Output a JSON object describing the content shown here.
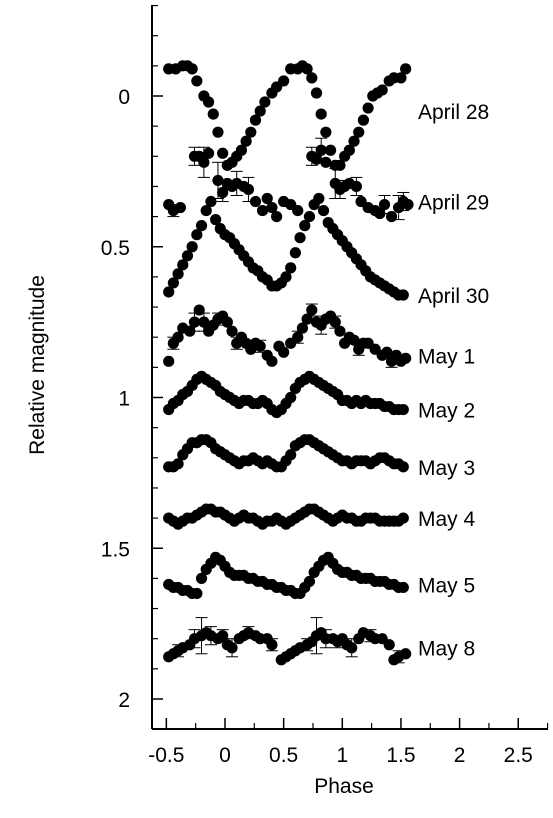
{
  "chart_data": {
    "type": "scatter",
    "title": "",
    "xlabel": "Phase",
    "ylabel": "Relative magnitude",
    "xlim": [
      -0.6,
      2.75
    ],
    "ylim": [
      2.1,
      -0.3
    ],
    "y_inverted": true,
    "grid": false,
    "legend": "series labels at right of each light curve",
    "marker_color": "#000000",
    "x_ticks": [
      {
        "value": -0.5,
        "label": "-0.5"
      },
      {
        "value": 0,
        "label": "0"
      },
      {
        "value": 0.5,
        "label": "0.5"
      },
      {
        "value": 1,
        "label": "1"
      },
      {
        "value": 1.5,
        "label": "1.5"
      },
      {
        "value": 2,
        "label": "2"
      },
      {
        "value": 2.5,
        "label": "2.5"
      }
    ],
    "y_ticks": [
      {
        "value": 0,
        "label": "0"
      },
      {
        "value": 0.5,
        "label": "0.5"
      },
      {
        "value": 1,
        "label": "1"
      },
      {
        "value": 1.5,
        "label": "1.5"
      },
      {
        "value": 2,
        "label": "2"
      }
    ],
    "series": [
      {
        "name": "April 28",
        "label_y": 0.05,
        "x": [
          -0.48,
          -0.42,
          -0.36,
          -0.32,
          -0.28,
          -0.24,
          -0.18,
          -0.14,
          -0.1,
          -0.06,
          -0.02,
          0.02,
          0.06,
          0.1,
          0.14,
          0.18,
          0.22,
          0.26,
          0.3,
          0.34,
          0.4,
          0.44,
          0.5,
          0.56,
          0.62,
          0.66,
          0.7,
          0.74,
          0.78,
          0.82,
          0.86,
          0.9,
          0.94,
          0.98,
          1.02,
          1.06,
          1.1,
          1.14,
          1.18,
          1.22,
          1.26,
          1.3,
          1.34,
          1.4,
          1.44,
          1.5,
          1.54
        ],
        "y": [
          -0.09,
          -0.09,
          -0.1,
          -0.1,
          -0.09,
          -0.05,
          0.0,
          0.02,
          0.06,
          0.12,
          0.19,
          0.23,
          0.22,
          0.2,
          0.18,
          0.15,
          0.12,
          0.08,
          0.05,
          0.02,
          -0.01,
          -0.03,
          -0.05,
          -0.09,
          -0.09,
          -0.1,
          -0.09,
          -0.06,
          -0.01,
          0.06,
          0.12,
          0.18,
          0.23,
          0.23,
          0.2,
          0.18,
          0.15,
          0.12,
          0.08,
          0.04,
          0.0,
          -0.01,
          -0.02,
          -0.05,
          -0.06,
          -0.06,
          -0.09
        ],
        "yerr": []
      },
      {
        "name": "April 29",
        "label_y": 0.35,
        "x": [
          -0.48,
          -0.44,
          -0.38,
          -0.26,
          -0.22,
          -0.18,
          -0.14,
          -0.06,
          -0.02,
          0.02,
          0.06,
          0.1,
          0.16,
          0.2,
          0.26,
          0.32,
          0.36,
          0.4,
          0.44,
          0.5,
          0.56,
          0.62,
          0.74,
          0.78,
          0.82,
          0.86,
          0.94,
          0.98,
          1.02,
          1.06,
          1.12,
          1.16,
          1.22,
          1.28,
          1.32,
          1.36,
          1.42,
          1.48,
          1.52,
          1.56
        ],
        "y": [
          0.36,
          0.38,
          0.37,
          0.2,
          0.2,
          0.22,
          0.19,
          0.28,
          0.32,
          0.29,
          0.3,
          0.29,
          0.3,
          0.31,
          0.35,
          0.38,
          0.34,
          0.37,
          0.4,
          0.35,
          0.36,
          0.38,
          0.2,
          0.21,
          0.18,
          0.22,
          0.29,
          0.31,
          0.3,
          0.29,
          0.3,
          0.35,
          0.37,
          0.38,
          0.39,
          0.36,
          0.4,
          0.37,
          0.35,
          0.36
        ],
        "yerr": [
          0,
          0.02,
          0,
          0.03,
          0,
          0.05,
          0,
          0.06,
          0.03,
          0,
          0,
          0.04,
          0,
          0.04,
          0,
          0,
          0,
          0,
          0,
          0,
          0,
          0,
          0.03,
          0,
          0.04,
          0,
          0.05,
          0.03,
          0,
          0,
          0.03,
          0,
          0,
          0,
          0,
          0.03,
          0,
          0.04,
          0.03,
          0
        ]
      },
      {
        "name": "April 30",
        "label_y": 0.66,
        "x": [
          -0.48,
          -0.44,
          -0.4,
          -0.36,
          -0.32,
          -0.28,
          -0.24,
          -0.2,
          -0.16,
          -0.12,
          -0.08,
          -0.04,
          0.0,
          0.04,
          0.08,
          0.12,
          0.16,
          0.2,
          0.24,
          0.28,
          0.32,
          0.36,
          0.4,
          0.44,
          0.48,
          0.52,
          0.56,
          0.6,
          0.64,
          0.68,
          0.72,
          0.76,
          0.8,
          0.84,
          0.88,
          0.92,
          0.96,
          1.0,
          1.04,
          1.08,
          1.12,
          1.16,
          1.2,
          1.24,
          1.28,
          1.32,
          1.36,
          1.4,
          1.44,
          1.48,
          1.52
        ],
        "y": [
          0.65,
          0.62,
          0.59,
          0.56,
          0.53,
          0.5,
          0.46,
          0.43,
          0.38,
          0.35,
          0.41,
          0.44,
          0.46,
          0.47,
          0.49,
          0.51,
          0.53,
          0.55,
          0.57,
          0.58,
          0.6,
          0.61,
          0.63,
          0.63,
          0.62,
          0.6,
          0.57,
          0.52,
          0.47,
          0.43,
          0.4,
          0.36,
          0.34,
          0.38,
          0.42,
          0.44,
          0.46,
          0.48,
          0.5,
          0.52,
          0.54,
          0.56,
          0.58,
          0.6,
          0.61,
          0.62,
          0.63,
          0.64,
          0.65,
          0.66,
          0.66
        ],
        "yerr": []
      },
      {
        "name": "May 1",
        "label_y": 0.86,
        "x": [
          -0.48,
          -0.44,
          -0.4,
          -0.36,
          -0.3,
          -0.26,
          -0.22,
          -0.18,
          -0.14,
          -0.1,
          -0.06,
          -0.02,
          0.02,
          0.06,
          0.1,
          0.14,
          0.18,
          0.22,
          0.26,
          0.3,
          0.36,
          0.4,
          0.46,
          0.5,
          0.56,
          0.62,
          0.66,
          0.7,
          0.74,
          0.78,
          0.82,
          0.86,
          0.9,
          0.94,
          0.98,
          1.02,
          1.06,
          1.1,
          1.14,
          1.18,
          1.22,
          1.28,
          1.34,
          1.38,
          1.42,
          1.46,
          1.5,
          1.54
        ],
        "y": [
          0.88,
          0.82,
          0.8,
          0.77,
          0.78,
          0.75,
          0.71,
          0.75,
          0.78,
          0.76,
          0.74,
          0.73,
          0.75,
          0.78,
          0.82,
          0.8,
          0.82,
          0.84,
          0.82,
          0.83,
          0.86,
          0.88,
          0.83,
          0.85,
          0.82,
          0.8,
          0.77,
          0.74,
          0.71,
          0.75,
          0.76,
          0.74,
          0.73,
          0.75,
          0.78,
          0.82,
          0.8,
          0.81,
          0.84,
          0.82,
          0.82,
          0.84,
          0.86,
          0.85,
          0.88,
          0.86,
          0.88,
          0.87
        ],
        "yerr": [
          0,
          0.02,
          0,
          0,
          0,
          0.03,
          0,
          0.03,
          0,
          0,
          0.02,
          0,
          0,
          0,
          0.02,
          0,
          0,
          0,
          0,
          0.02,
          0,
          0,
          0,
          0,
          0,
          0.02,
          0,
          0,
          0.02,
          0,
          0.03,
          0,
          0,
          0.02,
          0,
          0,
          0,
          0,
          0.02,
          0,
          0,
          0,
          0,
          0,
          0.02,
          0,
          0,
          0
        ]
      },
      {
        "name": "May 2",
        "label_y": 1.04,
        "x": [
          -0.48,
          -0.44,
          -0.4,
          -0.36,
          -0.32,
          -0.28,
          -0.24,
          -0.2,
          -0.16,
          -0.12,
          -0.08,
          -0.04,
          0.0,
          0.04,
          0.08,
          0.12,
          0.16,
          0.2,
          0.24,
          0.28,
          0.32,
          0.36,
          0.4,
          0.44,
          0.48,
          0.52,
          0.56,
          0.6,
          0.64,
          0.68,
          0.72,
          0.76,
          0.8,
          0.84,
          0.88,
          0.92,
          0.96,
          1.0,
          1.04,
          1.08,
          1.12,
          1.16,
          1.2,
          1.24,
          1.28,
          1.32,
          1.36,
          1.4,
          1.44,
          1.48,
          1.52
        ],
        "y": [
          1.04,
          1.02,
          1.01,
          0.99,
          0.98,
          0.96,
          0.94,
          0.93,
          0.94,
          0.95,
          0.96,
          0.98,
          0.99,
          1.0,
          1.01,
          1.02,
          1.01,
          1.01,
          1.02,
          1.02,
          1.01,
          1.02,
          1.04,
          1.05,
          1.04,
          1.02,
          1.0,
          0.97,
          0.95,
          0.94,
          0.93,
          0.94,
          0.95,
          0.96,
          0.97,
          0.98,
          0.99,
          1.01,
          1.01,
          1.02,
          1.01,
          1.02,
          1.01,
          1.02,
          1.02,
          1.02,
          1.03,
          1.03,
          1.04,
          1.04,
          1.04
        ],
        "yerr": []
      },
      {
        "name": "May 3",
        "label_y": 1.23,
        "x": [
          -0.48,
          -0.44,
          -0.4,
          -0.36,
          -0.32,
          -0.28,
          -0.24,
          -0.2,
          -0.16,
          -0.12,
          -0.08,
          -0.04,
          0.0,
          0.04,
          0.08,
          0.12,
          0.16,
          0.2,
          0.24,
          0.28,
          0.32,
          0.36,
          0.4,
          0.44,
          0.48,
          0.52,
          0.56,
          0.6,
          0.64,
          0.68,
          0.72,
          0.76,
          0.8,
          0.84,
          0.88,
          0.92,
          0.96,
          1.0,
          1.04,
          1.08,
          1.12,
          1.16,
          1.2,
          1.24,
          1.28,
          1.32,
          1.36,
          1.4,
          1.44,
          1.48,
          1.52
        ],
        "y": [
          1.23,
          1.23,
          1.22,
          1.19,
          1.17,
          1.15,
          1.15,
          1.14,
          1.14,
          1.15,
          1.17,
          1.18,
          1.19,
          1.2,
          1.21,
          1.22,
          1.21,
          1.21,
          1.2,
          1.21,
          1.22,
          1.21,
          1.22,
          1.23,
          1.23,
          1.21,
          1.19,
          1.16,
          1.15,
          1.14,
          1.14,
          1.15,
          1.16,
          1.17,
          1.18,
          1.19,
          1.2,
          1.21,
          1.21,
          1.22,
          1.21,
          1.21,
          1.21,
          1.22,
          1.21,
          1.2,
          1.2,
          1.21,
          1.22,
          1.22,
          1.23
        ],
        "yerr": []
      },
      {
        "name": "May 4",
        "label_y": 1.4,
        "x": [
          -0.48,
          -0.44,
          -0.4,
          -0.36,
          -0.32,
          -0.28,
          -0.24,
          -0.2,
          -0.16,
          -0.12,
          -0.08,
          -0.04,
          0.0,
          0.04,
          0.08,
          0.12,
          0.16,
          0.2,
          0.24,
          0.28,
          0.32,
          0.36,
          0.4,
          0.44,
          0.48,
          0.52,
          0.56,
          0.6,
          0.64,
          0.68,
          0.72,
          0.76,
          0.8,
          0.84,
          0.88,
          0.92,
          0.96,
          1.0,
          1.04,
          1.08,
          1.12,
          1.16,
          1.2,
          1.24,
          1.28,
          1.32,
          1.36,
          1.4,
          1.44,
          1.48,
          1.52
        ],
        "y": [
          1.4,
          1.41,
          1.42,
          1.41,
          1.4,
          1.4,
          1.39,
          1.38,
          1.37,
          1.37,
          1.38,
          1.38,
          1.39,
          1.4,
          1.41,
          1.4,
          1.39,
          1.4,
          1.4,
          1.41,
          1.42,
          1.41,
          1.41,
          1.4,
          1.41,
          1.42,
          1.41,
          1.4,
          1.39,
          1.38,
          1.37,
          1.37,
          1.38,
          1.39,
          1.4,
          1.41,
          1.4,
          1.39,
          1.4,
          1.4,
          1.41,
          1.41,
          1.4,
          1.4,
          1.4,
          1.41,
          1.41,
          1.41,
          1.41,
          1.41,
          1.4
        ],
        "yerr": []
      },
      {
        "name": "May 5",
        "label_y": 1.62,
        "x": [
          -0.48,
          -0.44,
          -0.4,
          -0.36,
          -0.32,
          -0.28,
          -0.24,
          -0.2,
          -0.16,
          -0.12,
          -0.08,
          -0.04,
          0.0,
          0.04,
          0.08,
          0.12,
          0.16,
          0.2,
          0.24,
          0.28,
          0.32,
          0.36,
          0.4,
          0.44,
          0.48,
          0.52,
          0.56,
          0.6,
          0.64,
          0.68,
          0.72,
          0.76,
          0.8,
          0.84,
          0.88,
          0.92,
          0.96,
          1.0,
          1.04,
          1.08,
          1.12,
          1.16,
          1.2,
          1.24,
          1.28,
          1.32,
          1.36,
          1.4,
          1.44,
          1.48,
          1.52
        ],
        "y": [
          1.62,
          1.63,
          1.63,
          1.64,
          1.64,
          1.65,
          1.65,
          1.6,
          1.57,
          1.55,
          1.53,
          1.54,
          1.56,
          1.58,
          1.59,
          1.59,
          1.59,
          1.6,
          1.6,
          1.61,
          1.61,
          1.62,
          1.62,
          1.63,
          1.63,
          1.64,
          1.64,
          1.65,
          1.65,
          1.63,
          1.61,
          1.58,
          1.56,
          1.54,
          1.53,
          1.55,
          1.57,
          1.58,
          1.58,
          1.59,
          1.59,
          1.6,
          1.6,
          1.6,
          1.61,
          1.61,
          1.61,
          1.62,
          1.62,
          1.63,
          1.63
        ],
        "yerr": []
      },
      {
        "name": "May 8",
        "label_y": 1.83,
        "x": [
          -0.48,
          -0.44,
          -0.4,
          -0.36,
          -0.3,
          -0.26,
          -0.2,
          -0.16,
          -0.12,
          -0.06,
          -0.02,
          0.02,
          0.06,
          0.12,
          0.16,
          0.2,
          0.26,
          0.3,
          0.36,
          0.4,
          0.48,
          0.52,
          0.56,
          0.6,
          0.64,
          0.7,
          0.74,
          0.78,
          0.82,
          0.86,
          0.92,
          0.96,
          1.0,
          1.04,
          1.08,
          1.14,
          1.18,
          1.24,
          1.28,
          1.34,
          1.4,
          1.44,
          1.48,
          1.54
        ],
        "y": [
          1.86,
          1.85,
          1.84,
          1.83,
          1.82,
          1.8,
          1.79,
          1.78,
          1.79,
          1.8,
          1.79,
          1.82,
          1.83,
          1.8,
          1.79,
          1.78,
          1.79,
          1.8,
          1.8,
          1.82,
          1.87,
          1.86,
          1.85,
          1.84,
          1.83,
          1.82,
          1.81,
          1.79,
          1.78,
          1.8,
          1.8,
          1.81,
          1.8,
          1.82,
          1.83,
          1.8,
          1.78,
          1.79,
          1.8,
          1.8,
          1.82,
          1.87,
          1.86,
          1.85
        ],
        "yerr": [
          0,
          0,
          0.02,
          0,
          0,
          0.03,
          0.06,
          0,
          0.03,
          0,
          0.02,
          0,
          0.03,
          0,
          0,
          0.02,
          0,
          0,
          0,
          0.02,
          0,
          0,
          0,
          0,
          0,
          0.02,
          0,
          0.06,
          0,
          0.03,
          0,
          0.02,
          0,
          0,
          0.03,
          0,
          0,
          0.02,
          0,
          0,
          0,
          0,
          0.02,
          0
        ]
      }
    ]
  }
}
